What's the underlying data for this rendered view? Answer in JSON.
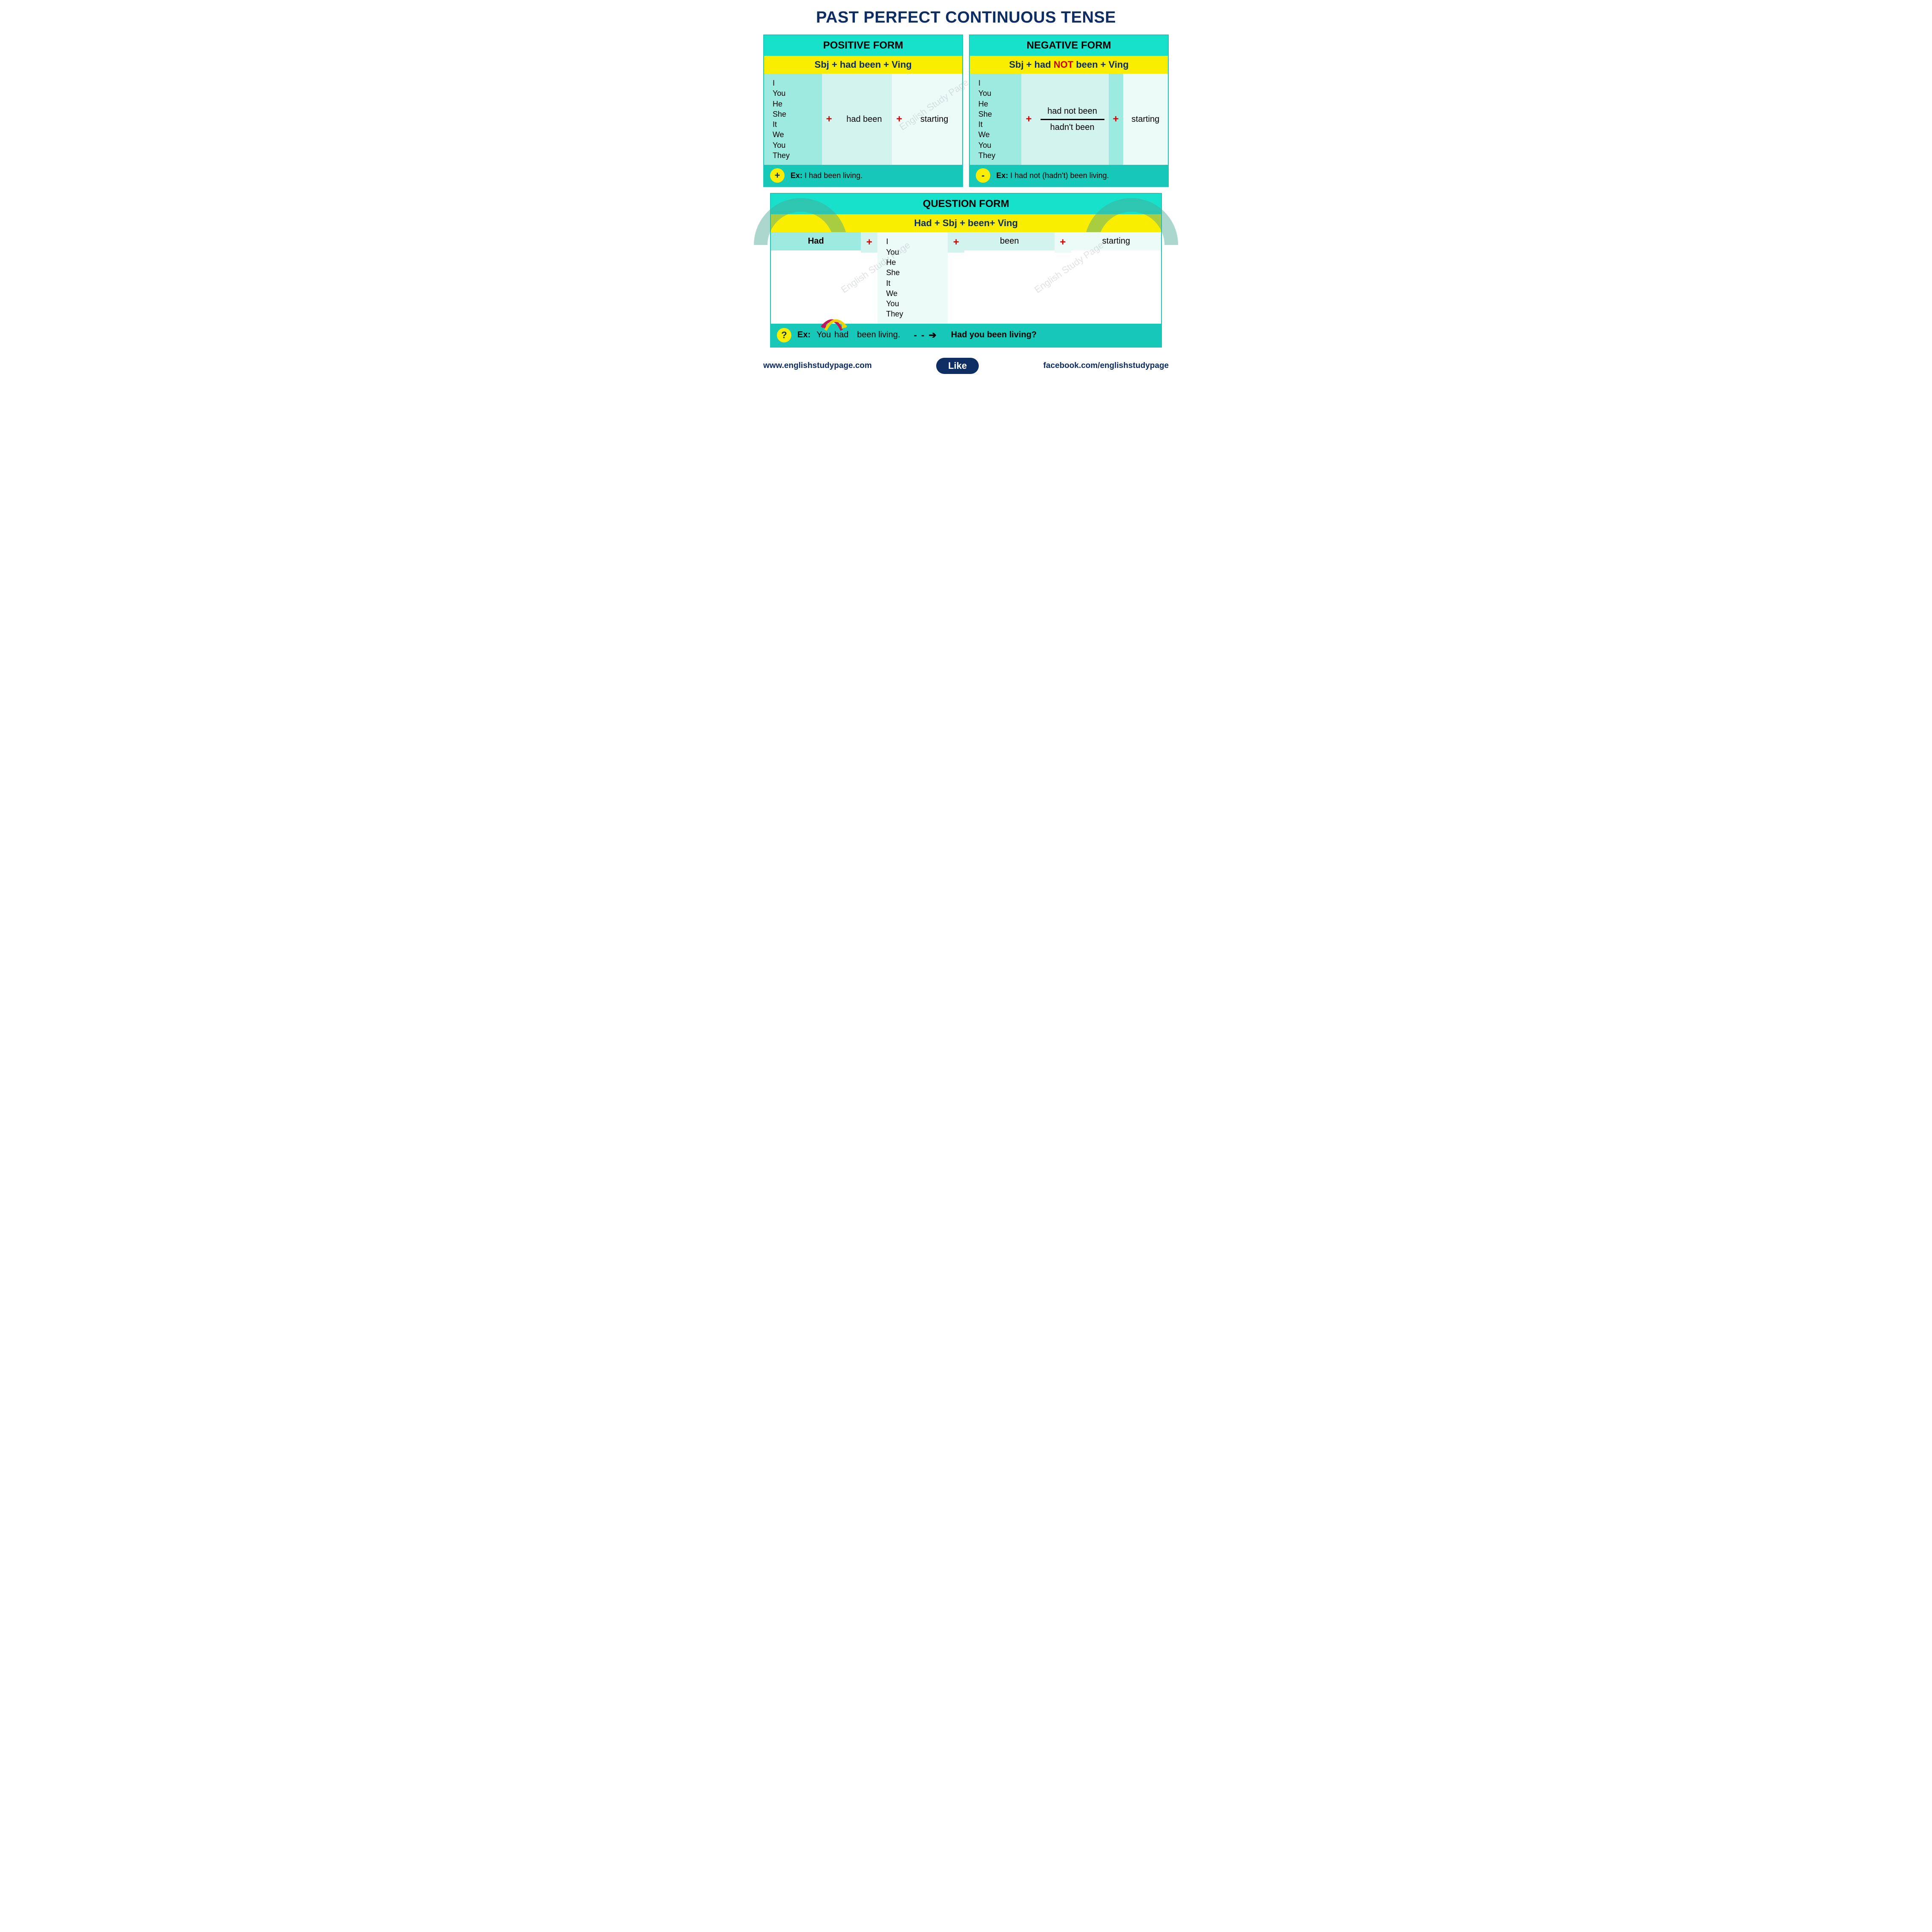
{
  "colors": {
    "title": "#0d2d63",
    "teal_border": "#17c8b8",
    "teal_header": "#17e0cb",
    "teal_footer": "#17c8b8",
    "yellow_bar": "#f9ed00",
    "formula_text": "#0d2d63",
    "icon_bg": "#f9ed00",
    "icon_fg": "#0d2d63",
    "plus": "#d40000",
    "col1": "#9debe0",
    "col2": "#d3f4ee",
    "col3": "#edfbf8",
    "col4": "#d3f4ee",
    "col5": "#edfbf8",
    "footer_text": "#0d2d63",
    "like_bg": "#0d2d63",
    "wm_arc": "#4aa890",
    "wm_text": "#9aa0a6"
  },
  "title": "PAST PERFECT CONTINUOUS TENSE",
  "pronouns": [
    "I",
    "You",
    "He",
    "She",
    "It",
    "We",
    "You",
    "They"
  ],
  "positive": {
    "header": "POSITIVE FORM",
    "formula": "Sbj + had been + Ving",
    "aux": "had been",
    "ving": "starting",
    "icon": "+",
    "ex_label": "Ex:",
    "example": "I had been living."
  },
  "negative": {
    "header": "NEGATIVE FORM",
    "formula_pre": "Sbj + had ",
    "formula_not": "NOT",
    "formula_post": " been + Ving",
    "aux_top": "had not been",
    "aux_bottom": "hadn't been",
    "ving": "starting",
    "icon": "-",
    "ex_label": "Ex:",
    "example": "I had not (hadn't) been living."
  },
  "question": {
    "header": "QUESTION FORM",
    "formula": "Had +  Sbj + been+ Ving",
    "had": "Had",
    "been": "been",
    "ving": "starting",
    "icon": "?",
    "ex_label": "Ex:",
    "ex_you": "You",
    "ex_had": "had",
    "ex_rest": "been living.",
    "dash_arrow": "- - ➔",
    "ex_result": "Had you been living?"
  },
  "footer": {
    "left": "www.englishstudypage.com",
    "like": "Like",
    "right": "facebook.com/englishstudypage"
  },
  "watermark": "English Study Page"
}
